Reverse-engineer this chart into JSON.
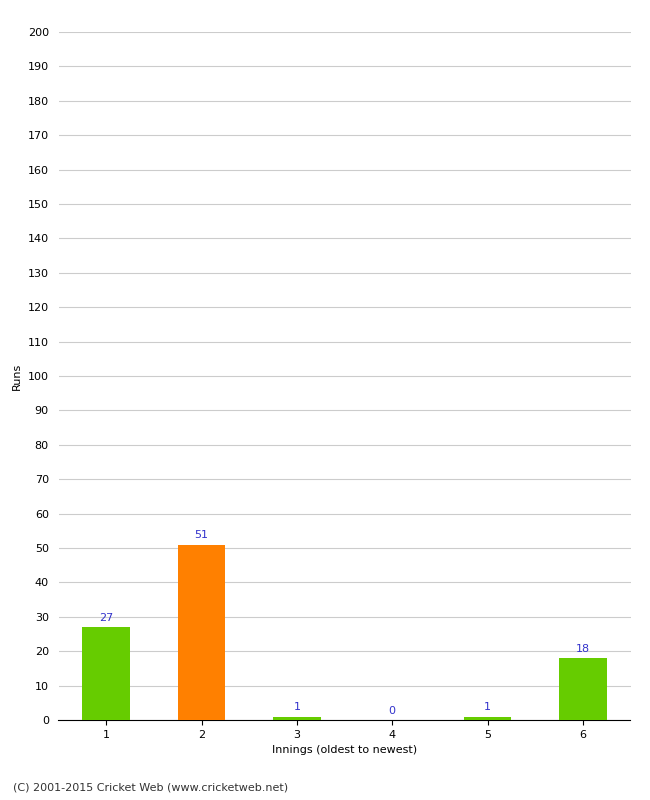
{
  "categories": [
    "1",
    "2",
    "3",
    "4",
    "5",
    "6"
  ],
  "values": [
    27,
    51,
    1,
    0,
    1,
    18
  ],
  "bar_colors": [
    "#66cc00",
    "#ff8000",
    "#66cc00",
    "#66cc00",
    "#66cc00",
    "#66cc00"
  ],
  "xlabel": "Innings (oldest to newest)",
  "ylabel": "Runs",
  "ylim": [
    0,
    200
  ],
  "yticks": [
    0,
    10,
    20,
    30,
    40,
    50,
    60,
    70,
    80,
    90,
    100,
    110,
    120,
    130,
    140,
    150,
    160,
    170,
    180,
    190,
    200
  ],
  "label_color": "#3333cc",
  "label_fontsize": 8,
  "axis_label_fontsize": 8,
  "tick_fontsize": 8,
  "footer_text": "(C) 2001-2015 Cricket Web (www.cricketweb.net)",
  "footer_fontsize": 8,
  "background_color": "#ffffff",
  "grid_color": "#cccccc",
  "bar_width": 0.5
}
